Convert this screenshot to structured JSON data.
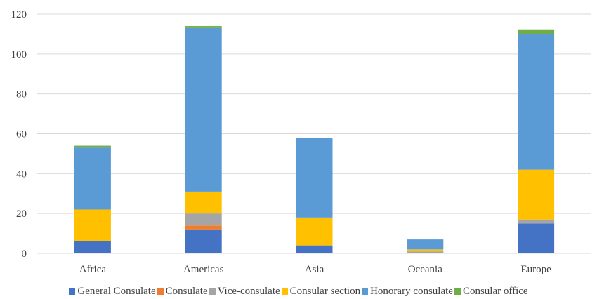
{
  "chart_data": {
    "type": "bar",
    "stacked": true,
    "categories": [
      "Africa",
      "Americas",
      "Asia",
      "Oceania",
      "Europe"
    ],
    "series": [
      {
        "name": "General Consulate",
        "color": "#4472C4",
        "values": [
          6,
          12,
          4,
          0,
          15
        ]
      },
      {
        "name": "Consulate",
        "color": "#ED7D31",
        "values": [
          0,
          2,
          0,
          0,
          0
        ]
      },
      {
        "name": "Vice-consulate",
        "color": "#A5A5A5",
        "values": [
          0,
          6,
          0,
          1,
          2
        ]
      },
      {
        "name": "Consular section",
        "color": "#FFC000",
        "values": [
          16,
          11,
          14,
          1,
          25
        ]
      },
      {
        "name": "Honorary consulate",
        "color": "#5B9BD5",
        "values": [
          31,
          82,
          40,
          5,
          68
        ]
      },
      {
        "name": "Consular office",
        "color": "#70AD47",
        "values": [
          1,
          1,
          0,
          0,
          2
        ]
      }
    ],
    "ylim": [
      0,
      120
    ],
    "yticks": [
      0,
      20,
      40,
      60,
      80,
      100,
      120
    ],
    "grid": true,
    "legend": "bottom"
  }
}
